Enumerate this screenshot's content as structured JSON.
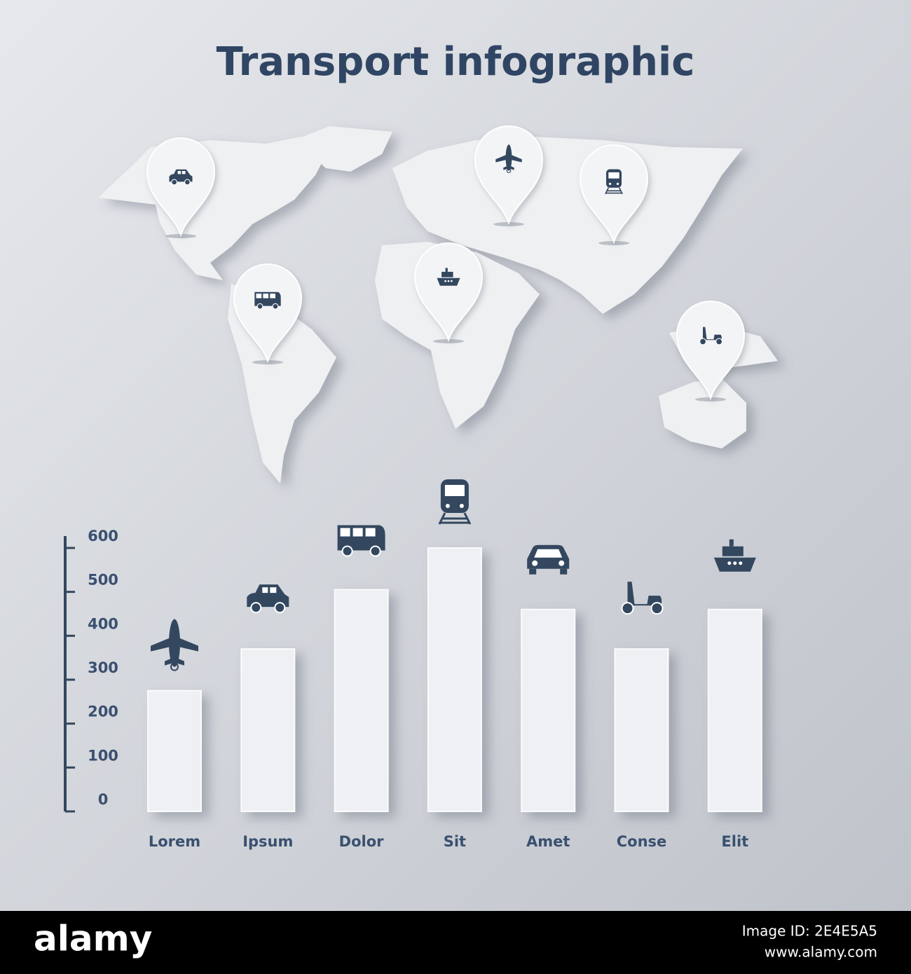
{
  "title": "Transport infographic",
  "chart_data": {
    "type": "bar",
    "categories": [
      "Lorem",
      "Ipsum",
      "Dolor",
      "Sit",
      "Amet",
      "Conse",
      "Elit"
    ],
    "values": [
      275,
      370,
      505,
      600,
      460,
      370,
      460
    ],
    "color": "#eef0f3",
    "ylim": [
      0,
      600
    ],
    "yticks": [
      0,
      100,
      200,
      300,
      400,
      500,
      600
    ],
    "grid": false
  },
  "footer": {
    "brand": "alamy",
    "image_id": "Image ID: 2E4E5A5",
    "url": "www.alamy.com"
  }
}
